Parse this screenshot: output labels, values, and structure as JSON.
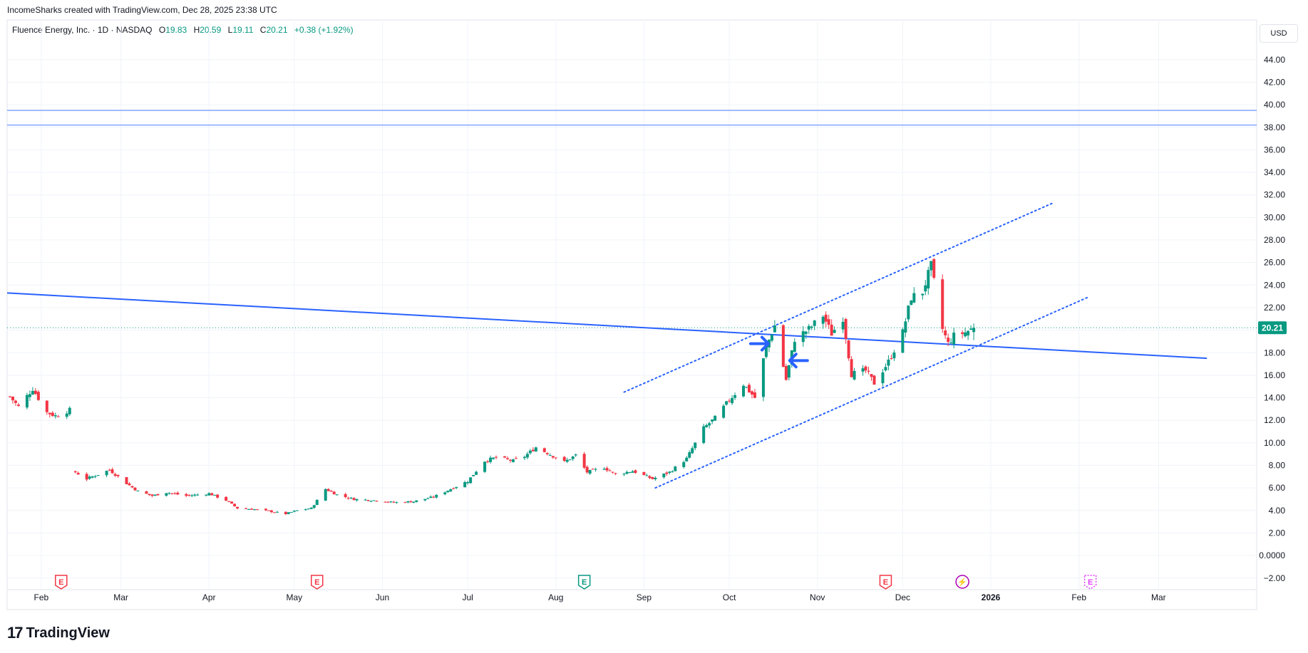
{
  "header": {
    "credit": "IncomeSharks created with TradingView.com, Dec 28, 2025 23:38 UTC"
  },
  "legend": {
    "symbol": "Fluence Energy, Inc. · 1D · NASDAQ",
    "o_label": "O",
    "o_value": "19.83",
    "h_label": "H",
    "h_value": "20.59",
    "l_label": "L",
    "l_value": "19.11",
    "c_label": "C",
    "c_value": "20.21",
    "change": "+0.38 (+1.92%)"
  },
  "currency": "USD",
  "logo": {
    "mark": "17",
    "name": "TradingView"
  },
  "colors": {
    "up": "#089981",
    "down": "#f23645",
    "trendline": "#2962ff",
    "hline": "#82a6ff",
    "last_price_tag": "#089981"
  },
  "chart_data": {
    "type": "candlestick",
    "y_axis": {
      "ticks": [
        -2,
        0,
        2,
        4,
        6,
        8,
        10,
        12,
        14,
        16,
        18,
        20,
        22,
        24,
        26,
        28,
        30,
        32,
        34,
        36,
        38,
        40,
        42,
        44
      ],
      "tick_labels": [
        "−2.00",
        "0.0000",
        "2.00",
        "4.00",
        "6.00",
        "8.00",
        "10.00",
        "12.00",
        "14.00",
        "16.00",
        "18.00",
        "20.00",
        "22.00",
        "24.00",
        "26.00",
        "28.00",
        "30.00",
        "32.00",
        "34.00",
        "36.00",
        "38.00",
        "40.00",
        "42.00",
        "44.00"
      ],
      "range": [
        -2.9,
        47.4
      ]
    },
    "x_axis": {
      "labels": [
        "Feb",
        "Mar",
        "Apr",
        "May",
        "Jun",
        "Jul",
        "Aug",
        "Sep",
        "Oct",
        "Nov",
        "Dec",
        "2026",
        "Feb",
        "Mar"
      ],
      "label_dates": [
        "2025-02-01",
        "2025-03-01",
        "2025-04-01",
        "2025-05-01",
        "2025-06-01",
        "2025-07-01",
        "2025-08-01",
        "2025-09-01",
        "2025-10-01",
        "2025-11-01",
        "2025-12-01",
        "2026-01-01",
        "2026-02-01",
        "2026-03-01"
      ]
    },
    "last_price": "20.21",
    "closes": [
      {
        "date": "2025-01-21",
        "close": 14.1
      },
      {
        "date": "2025-01-24",
        "close": 13.2
      },
      {
        "date": "2025-01-29",
        "close": 14.8
      },
      {
        "date": "2025-02-03",
        "close": 12.7
      },
      {
        "date": "2025-02-06",
        "close": 12.4
      },
      {
        "date": "2025-02-11",
        "close": 12.9
      },
      {
        "date": "2025-02-13",
        "close": 7.4
      },
      {
        "date": "2025-02-17",
        "close": 6.8
      },
      {
        "date": "2025-02-21",
        "close": 7.2
      },
      {
        "date": "2025-02-25",
        "close": 7.6
      },
      {
        "date": "2025-03-03",
        "close": 6.4
      },
      {
        "date": "2025-03-07",
        "close": 5.7
      },
      {
        "date": "2025-03-12",
        "close": 5.3
      },
      {
        "date": "2025-03-17",
        "close": 5.6
      },
      {
        "date": "2025-03-24",
        "close": 5.3
      },
      {
        "date": "2025-04-01",
        "close": 5.5
      },
      {
        "date": "2025-04-07",
        "close": 4.9
      },
      {
        "date": "2025-04-11",
        "close": 4.2
      },
      {
        "date": "2025-04-17",
        "close": 4.1
      },
      {
        "date": "2025-04-23",
        "close": 3.9
      },
      {
        "date": "2025-04-28",
        "close": 3.7
      },
      {
        "date": "2025-05-02",
        "close": 4.0
      },
      {
        "date": "2025-05-07",
        "close": 4.2
      },
      {
        "date": "2025-05-12",
        "close": 5.9
      },
      {
        "date": "2025-05-16",
        "close": 5.4
      },
      {
        "date": "2025-05-22",
        "close": 5.0
      },
      {
        "date": "2025-05-29",
        "close": 4.9
      },
      {
        "date": "2025-06-05",
        "close": 4.7
      },
      {
        "date": "2025-06-12",
        "close": 4.8
      },
      {
        "date": "2025-06-19",
        "close": 5.2
      },
      {
        "date": "2025-06-25",
        "close": 5.9
      },
      {
        "date": "2025-07-01",
        "close": 6.6
      },
      {
        "date": "2025-07-07",
        "close": 8.4
      },
      {
        "date": "2025-07-11",
        "close": 8.7
      },
      {
        "date": "2025-07-17",
        "close": 8.4
      },
      {
        "date": "2025-07-21",
        "close": 8.8
      },
      {
        "date": "2025-07-25",
        "close": 9.6
      },
      {
        "date": "2025-07-29",
        "close": 9.1
      },
      {
        "date": "2025-08-04",
        "close": 8.3
      },
      {
        "date": "2025-08-08",
        "close": 8.9
      },
      {
        "date": "2025-08-12",
        "close": 7.4
      },
      {
        "date": "2025-08-18",
        "close": 7.8
      },
      {
        "date": "2025-08-22",
        "close": 7.2
      },
      {
        "date": "2025-08-28",
        "close": 7.5
      },
      {
        "date": "2025-09-04",
        "close": 6.8
      },
      {
        "date": "2025-09-10",
        "close": 7.4
      },
      {
        "date": "2025-09-16",
        "close": 8.6
      },
      {
        "date": "2025-09-22",
        "close": 11.3
      },
      {
        "date": "2025-09-26",
        "close": 12.2
      },
      {
        "date": "2025-10-01",
        "close": 13.8
      },
      {
        "date": "2025-10-06",
        "close": 15.2
      },
      {
        "date": "2025-10-10",
        "close": 14.0
      },
      {
        "date": "2025-10-14",
        "close": 18.5
      },
      {
        "date": "2025-10-17",
        "close": 20.4
      },
      {
        "date": "2025-10-21",
        "close": 15.6
      },
      {
        "date": "2025-10-24",
        "close": 19.2
      },
      {
        "date": "2025-10-29",
        "close": 20.1
      },
      {
        "date": "2025-11-03",
        "close": 21.3
      },
      {
        "date": "2025-11-06",
        "close": 19.7
      },
      {
        "date": "2025-11-10",
        "close": 21.1
      },
      {
        "date": "2025-11-13",
        "close": 16.1
      },
      {
        "date": "2025-11-18",
        "close": 16.4
      },
      {
        "date": "2025-11-21",
        "close": 15.3
      },
      {
        "date": "2025-11-26",
        "close": 17.2
      },
      {
        "date": "2025-12-01",
        "close": 19.8
      },
      {
        "date": "2025-12-04",
        "close": 22.9
      },
      {
        "date": "2025-12-08",
        "close": 23.4
      },
      {
        "date": "2025-12-11",
        "close": 25.7
      },
      {
        "date": "2025-12-15",
        "close": 20.1
      },
      {
        "date": "2025-12-17",
        "close": 18.8
      },
      {
        "date": "2025-12-19",
        "close": 19.5
      },
      {
        "date": "2025-12-23",
        "close": 19.8
      },
      {
        "date": "2025-12-26",
        "close": 20.21
      }
    ],
    "horizontal_lines": [
      39.5,
      38.2
    ],
    "trendlines": [
      {
        "style": "solid",
        "from": {
          "date": "2025-01-20",
          "price": 23.3
        },
        "to": {
          "date": "2026-03-18",
          "price": 17.5
        }
      },
      {
        "style": "dotted",
        "from": {
          "date": "2025-08-25",
          "price": 14.5
        },
        "to": {
          "date": "2026-01-23",
          "price": 31.3
        }
      },
      {
        "style": "dotted",
        "from": {
          "date": "2025-09-05",
          "price": 6.0
        },
        "to": {
          "date": "2026-02-04",
          "price": 22.9
        }
      }
    ],
    "arrows": [
      {
        "direction": "right",
        "date": "2025-10-12",
        "price": 18.8
      },
      {
        "direction": "left",
        "date": "2025-10-25",
        "price": 17.3
      }
    ],
    "event_markers": [
      {
        "date": "2025-02-08",
        "label": "E",
        "kind": "earnings"
      },
      {
        "date": "2025-05-09",
        "label": "E",
        "kind": "earnings"
      },
      {
        "date": "2025-08-11",
        "label": "E",
        "kind": "earnings-upcoming"
      },
      {
        "date": "2025-11-25",
        "label": "E",
        "kind": "earnings"
      },
      {
        "date": "2025-12-22",
        "label": "⚡",
        "kind": "split-dividend"
      },
      {
        "date": "2026-02-05",
        "label": "E",
        "kind": "earnings-future"
      }
    ]
  }
}
